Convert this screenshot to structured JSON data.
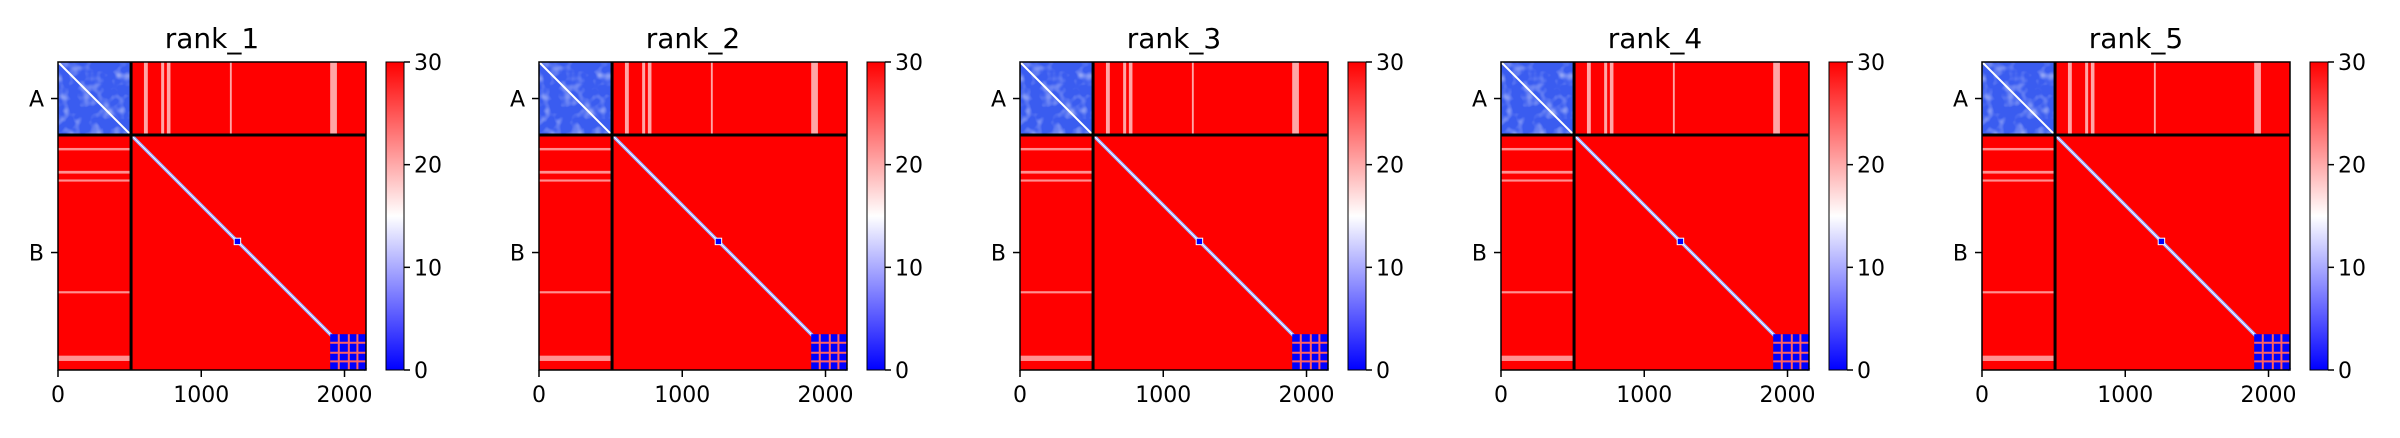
{
  "chart_data": {
    "type": "heatmap",
    "colormap": "bwr",
    "colors": {
      "low": "#0000ff",
      "mid": "#ffffff",
      "high": "#ff0000",
      "divider": "#000000"
    },
    "colorbar": {
      "min": 0,
      "max": 30,
      "ticks": [
        "0",
        "10",
        "20",
        "30"
      ]
    },
    "x_ticks": [
      "0",
      "1000",
      "2000"
    ],
    "x_tick_values": [
      0,
      1000,
      2000
    ],
    "x_range": [
      0,
      2150
    ],
    "chains": [
      {
        "label": "A",
        "start": 0,
        "end": 510
      },
      {
        "label": "B",
        "start": 510,
        "end": 2150
      }
    ],
    "panels": [
      {
        "title": "rank_1"
      },
      {
        "title": "rank_2"
      },
      {
        "title": "rank_3"
      },
      {
        "title": "rank_4"
      },
      {
        "title": "rank_5"
      }
    ]
  }
}
